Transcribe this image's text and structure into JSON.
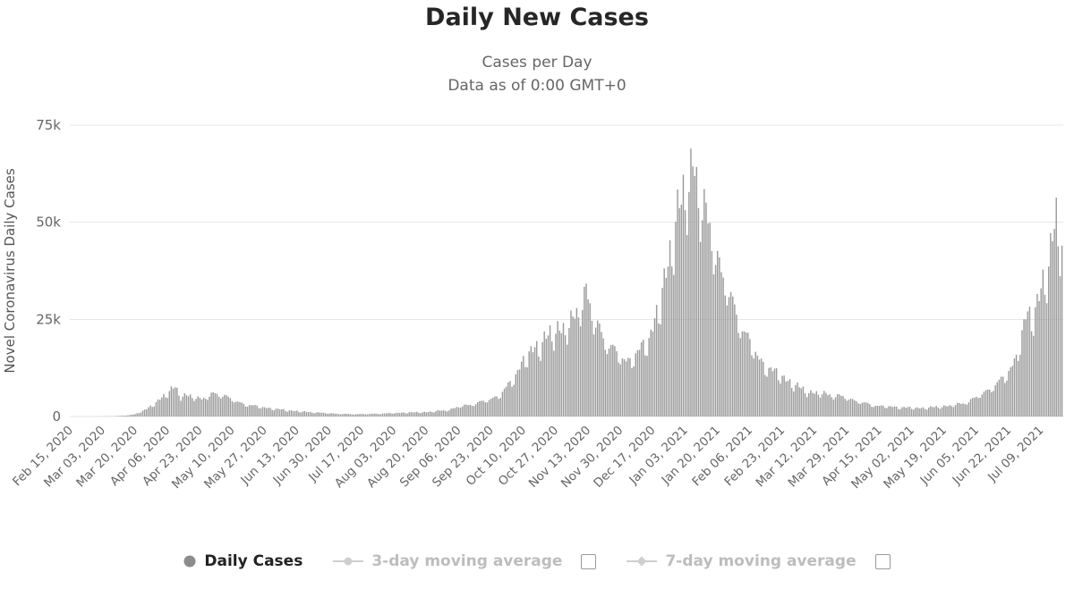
{
  "header": {
    "title": "Daily New Cases",
    "subtitle_line1": "Cases per Day",
    "subtitle_line2": "Data as of 0:00 GMT+0"
  },
  "chart_data": {
    "type": "bar",
    "title": "Daily New Cases",
    "subtitle": "Cases per Day — Data as of 0:00 GMT+0",
    "xlabel": "",
    "ylabel": "Novel Coronavirus Daily Cases",
    "ylim": [
      0,
      75000
    ],
    "grid": true,
    "legend_position": "bottom",
    "yticks": [
      {
        "value": 0,
        "label": "0"
      },
      {
        "value": 25000,
        "label": "25k"
      },
      {
        "value": 50000,
        "label": "50k"
      },
      {
        "value": 75000,
        "label": "75k"
      }
    ],
    "x_start_date": "2020-02-15",
    "x_end_date": "2021-07-20",
    "xtick_interval_days": 17,
    "xtick_labels": [
      "Feb 15, 2020",
      "Mar 03, 2020",
      "Mar 20, 2020",
      "Apr 06, 2020",
      "Apr 23, 2020",
      "May 10, 2020",
      "May 27, 2020",
      "Jun 13, 2020",
      "Jun 30, 2020",
      "Jul 17, 2020",
      "Aug 03, 2020",
      "Aug 20, 2020",
      "Sep 06, 2020",
      "Sep 23, 2020",
      "Oct 10, 2020",
      "Oct 27, 2020",
      "Nov 13, 2020",
      "Nov 30, 2020",
      "Dec 17, 2020",
      "Jan 03, 2021",
      "Jan 20, 2021",
      "Feb 06, 2021",
      "Feb 23, 2021",
      "Mar 12, 2021",
      "Mar 29, 2021",
      "Apr 15, 2021",
      "May 02, 2021",
      "May 19, 2021",
      "Jun 05, 2021",
      "Jun 22, 2021",
      "Jul 09, 2021"
    ],
    "series": [
      {
        "name": "Daily Cases",
        "type": "bar",
        "visible": true,
        "points": [
          [
            "2020-02-15",
            0
          ],
          [
            "2020-03-01",
            30
          ],
          [
            "2020-03-08",
            70
          ],
          [
            "2020-03-14",
            200
          ],
          [
            "2020-03-20",
            600
          ],
          [
            "2020-03-26",
            1900
          ],
          [
            "2020-04-01",
            4200
          ],
          [
            "2020-04-05",
            5600
          ],
          [
            "2020-04-10",
            8000
          ],
          [
            "2020-04-13",
            5400
          ],
          [
            "2020-04-18",
            5300
          ],
          [
            "2020-04-24",
            4700
          ],
          [
            "2020-05-01",
            6000
          ],
          [
            "2020-05-06",
            5600
          ],
          [
            "2020-05-12",
            3900
          ],
          [
            "2020-05-18",
            3100
          ],
          [
            "2020-05-24",
            2600
          ],
          [
            "2020-06-01",
            2000
          ],
          [
            "2020-06-08",
            1650
          ],
          [
            "2020-06-15",
            1300
          ],
          [
            "2020-06-22",
            1100
          ],
          [
            "2020-07-01",
            800
          ],
          [
            "2020-07-10",
            630
          ],
          [
            "2020-07-20",
            650
          ],
          [
            "2020-08-01",
            850
          ],
          [
            "2020-08-10",
            1050
          ],
          [
            "2020-08-20",
            1150
          ],
          [
            "2020-09-01",
            1750
          ],
          [
            "2020-09-07",
            2700
          ],
          [
            "2020-09-14",
            3300
          ],
          [
            "2020-09-21",
            4300
          ],
          [
            "2020-09-28",
            5700
          ],
          [
            "2020-10-04",
            9500
          ],
          [
            "2020-10-10",
            14500
          ],
          [
            "2020-10-16",
            18000
          ],
          [
            "2020-10-22",
            20500
          ],
          [
            "2020-10-29",
            23000
          ],
          [
            "2020-11-05",
            24500
          ],
          [
            "2020-11-12",
            33500
          ],
          [
            "2020-11-16",
            25000
          ],
          [
            "2020-11-21",
            21000
          ],
          [
            "2020-11-28",
            16500
          ],
          [
            "2020-12-03",
            14500
          ],
          [
            "2020-12-09",
            16500
          ],
          [
            "2020-12-15",
            20500
          ],
          [
            "2020-12-21",
            30000
          ],
          [
            "2020-12-25",
            39000
          ],
          [
            "2020-12-29",
            53000
          ],
          [
            "2021-01-02",
            57000
          ],
          [
            "2021-01-05",
            60500
          ],
          [
            "2021-01-08",
            67000
          ],
          [
            "2021-01-12",
            55000
          ],
          [
            "2021-01-16",
            48500
          ],
          [
            "2021-01-22",
            38500
          ],
          [
            "2021-01-28",
            29000
          ],
          [
            "2021-02-03",
            22500
          ],
          [
            "2021-02-10",
            15500
          ],
          [
            "2021-02-16",
            12500
          ],
          [
            "2021-02-23",
            10500
          ],
          [
            "2021-03-02",
            8000
          ],
          [
            "2021-03-10",
            6300
          ],
          [
            "2021-03-18",
            5900
          ],
          [
            "2021-03-26",
            5300
          ],
          [
            "2021-04-03",
            4100
          ],
          [
            "2021-04-11",
            3000
          ],
          [
            "2021-04-19",
            2600
          ],
          [
            "2021-04-27",
            2400
          ],
          [
            "2021-05-05",
            2200
          ],
          [
            "2021-05-13",
            2400
          ],
          [
            "2021-05-21",
            2800
          ],
          [
            "2021-05-29",
            3400
          ],
          [
            "2021-06-06",
            5300
          ],
          [
            "2021-06-13",
            7600
          ],
          [
            "2021-06-20",
            10300
          ],
          [
            "2021-06-26",
            15500
          ],
          [
            "2021-07-01",
            25500
          ],
          [
            "2021-07-05",
            27500
          ],
          [
            "2021-07-09",
            33000
          ],
          [
            "2021-07-13",
            38500
          ],
          [
            "2021-07-16",
            51000
          ],
          [
            "2021-07-17",
            54000
          ],
          [
            "2021-07-19",
            48500
          ],
          [
            "2021-07-20",
            46800
          ]
        ]
      },
      {
        "name": "3-day moving average",
        "type": "line",
        "visible": false
      },
      {
        "name": "7-day moving average",
        "type": "line",
        "visible": false
      }
    ]
  },
  "legend": {
    "items": [
      {
        "label": "Daily Cases",
        "marker": "circle",
        "active": true,
        "checkbox": false
      },
      {
        "label": "3-day moving average",
        "marker": "line-circle",
        "active": false,
        "checkbox": true
      },
      {
        "label": "7-day moving average",
        "marker": "line-diamond",
        "active": false,
        "checkbox": true
      }
    ]
  },
  "colors": {
    "bar": "#9b9b9b",
    "grid": "#e6e6e6",
    "axis_label": "#666666",
    "y_axis_title": "#555555",
    "title": "#262626",
    "subtitle": "#666666",
    "legend_active": "#222222",
    "legend_inactive": "#bdbdbd",
    "marker_active": "#8c8c8c",
    "marker_inactive": "#cfcfcf"
  }
}
